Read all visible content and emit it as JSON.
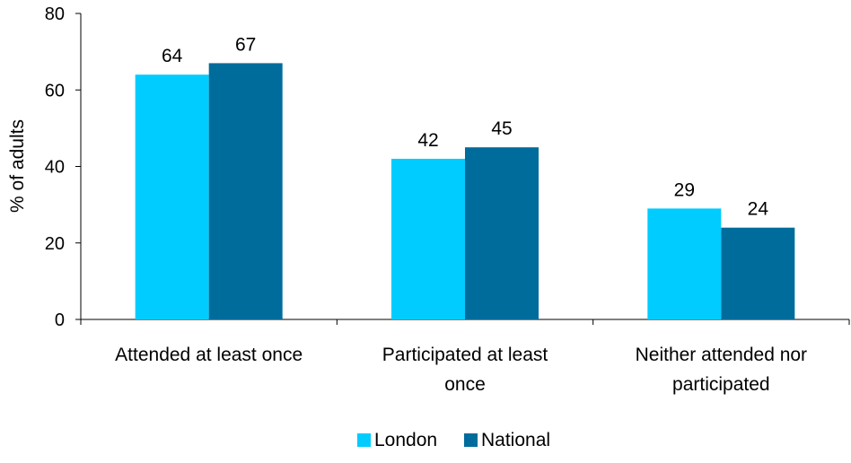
{
  "chart_data": {
    "type": "bar",
    "title": "",
    "xlabel": "",
    "ylabel": "% of adults",
    "ylim": [
      0,
      80
    ],
    "yticks": [
      0,
      20,
      40,
      60,
      80
    ],
    "grid": false,
    "legend_position": "bottom",
    "categories": [
      [
        "Attended at least once"
      ],
      [
        "Participated at least",
        "once"
      ],
      [
        "Neither attended nor",
        "participated"
      ]
    ],
    "series": [
      {
        "name": "London",
        "color": "#00ccff",
        "values": [
          64,
          42,
          29
        ]
      },
      {
        "name": "National",
        "color": "#006c9c",
        "values": [
          67,
          45,
          24
        ]
      }
    ]
  }
}
